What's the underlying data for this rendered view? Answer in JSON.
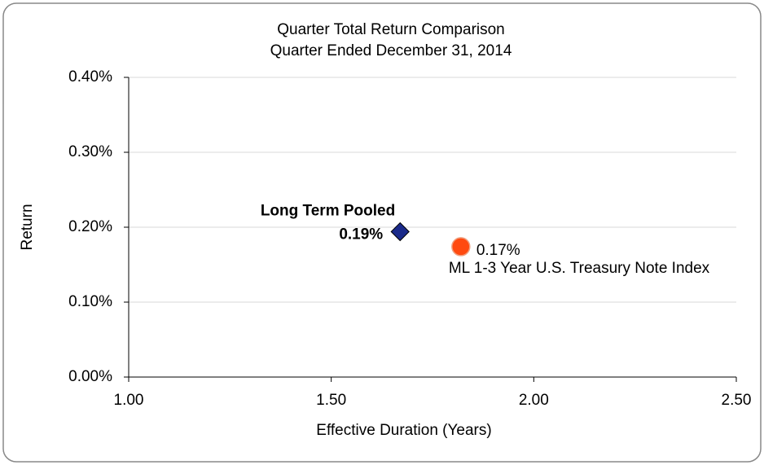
{
  "chart_data": {
    "type": "scatter",
    "title": "Quarter Total Return Comparison",
    "subtitle": "Quarter Ended December 31, 2014",
    "xlabel": "Effective Duration (Years)",
    "ylabel": "Return",
    "xlim": [
      1,
      2.5
    ],
    "ylim": [
      0,
      0.4
    ],
    "xticks": [
      {
        "value": 1,
        "label": "1.00"
      },
      {
        "value": 1.5,
        "label": "1.50"
      },
      {
        "value": 2,
        "label": "2.00"
      },
      {
        "value": 2.5,
        "label": "2.50"
      }
    ],
    "yticks": [
      {
        "value": 0,
        "label": "0.00%"
      },
      {
        "value": 0.1,
        "label": "0.10%"
      },
      {
        "value": 0.2,
        "label": "0.20%"
      },
      {
        "value": 0.3,
        "label": "0.30%"
      },
      {
        "value": 0.4,
        "label": "0.40%"
      }
    ],
    "grid": true,
    "series": [
      {
        "name": "Long Term Pooled",
        "color": "#1a2a8a",
        "marker": "diamond",
        "x": [
          1.67
        ],
        "values": [
          0.194
        ],
        "value_labels": [
          "0.19%"
        ]
      },
      {
        "name": "ML 1-3 Year U.S. Treasury Note Index",
        "color": "#ff4a10",
        "marker": "circle",
        "x": [
          1.82
        ],
        "values": [
          0.174
        ],
        "value_labels": [
          "0.17%"
        ]
      }
    ]
  }
}
